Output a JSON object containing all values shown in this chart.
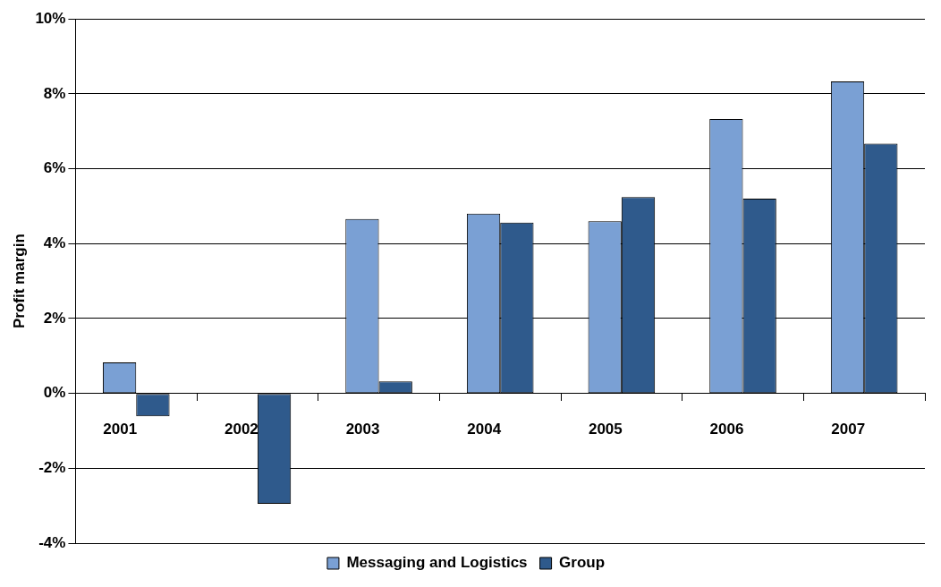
{
  "chart_data": {
    "type": "bar",
    "ylabel": "Profit margin",
    "categories": [
      "2001",
      "2002",
      "2003",
      "2004",
      "2005",
      "2006",
      "2007"
    ],
    "series": [
      {
        "name": "Messaging and Logistics",
        "color": "#7aa0d4",
        "values": [
          0.83,
          null,
          4.66,
          4.8,
          4.6,
          7.33,
          8.33
        ]
      },
      {
        "name": "Group",
        "color": "#2f5a8c",
        "values": [
          -0.61,
          -2.95,
          0.32,
          4.56,
          5.24,
          5.2,
          6.67
        ]
      }
    ],
    "ylim": [
      -4,
      10
    ],
    "yticks": [
      {
        "value": -4,
        "label": "-4%"
      },
      {
        "value": -2,
        "label": "-2%"
      },
      {
        "value": 0,
        "label": "0%"
      },
      {
        "value": 2,
        "label": "2%"
      },
      {
        "value": 4,
        "label": "4%"
      },
      {
        "value": 6,
        "label": "6%"
      },
      {
        "value": 8,
        "label": "8%"
      },
      {
        "value": 10,
        "label": "10%"
      }
    ],
    "grid": "y",
    "legend": "bottom"
  }
}
